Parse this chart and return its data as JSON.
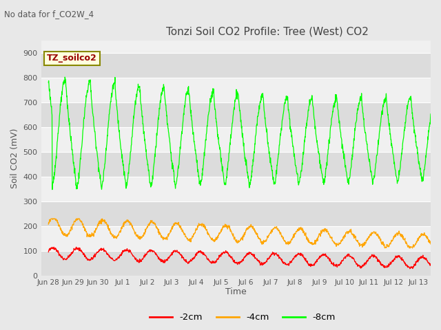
{
  "title": "Tonzi Soil CO2 Profile: Tree (West) CO2",
  "no_data_label": "No data for f_CO2W_4",
  "ylabel": "Soil CO2 (mV)",
  "xlabel": "Time",
  "legend_label": "TZ_soilco2",
  "series_labels": [
    "-2cm",
    "-4cm",
    "-8cm"
  ],
  "series_colors": [
    "#ff0000",
    "#ffa500",
    "#00ff00"
  ],
  "ylim": [
    0,
    950
  ],
  "yticks": [
    0,
    100,
    200,
    300,
    400,
    500,
    600,
    700,
    800,
    900
  ],
  "bg_color": "#e8e8e8",
  "plot_bg_light": "#f0f0f0",
  "plot_bg_dark": "#dcdcdc",
  "n_days": 15.5,
  "xtick_labels": [
    "Jun 28",
    "Jun 29",
    "Jun 30",
    "Jul 1",
    "Jul 2",
    "Jul 3",
    "Jul 4",
    "Jul 5",
    "Jul 6",
    "Jul 7",
    "Jul 8",
    "Jul 9",
    "Jul 10",
    "Jul 11",
    "Jul 12",
    "Jul 13"
  ],
  "figsize": [
    6.4,
    4.8
  ],
  "dpi": 100
}
